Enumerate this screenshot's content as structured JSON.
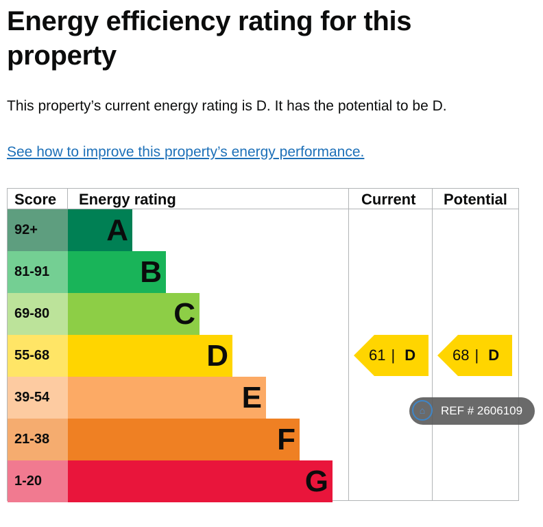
{
  "title": "Energy efficiency rating for this property",
  "summary": "This property’s current energy rating is D. It has the potential to be D.",
  "link": "See how to improve this property’s energy performance.",
  "table": {
    "headers": {
      "score": "Score",
      "rating": "Energy rating",
      "current": "Current",
      "potential": "Potential"
    },
    "bands": [
      {
        "score": "92+",
        "letter": "A",
        "color": "#008054",
        "score_bg": "#5e9e7f"
      },
      {
        "score": "81-91",
        "letter": "B",
        "color": "#19b459",
        "score_bg": "#74cf93"
      },
      {
        "score": "69-80",
        "letter": "C",
        "color": "#8dce46",
        "score_bg": "#bce39a"
      },
      {
        "score": "55-68",
        "letter": "D",
        "color": "#ffd500",
        "score_bg": "#ffe566"
      },
      {
        "score": "39-54",
        "letter": "E",
        "color": "#fcaa65",
        "score_bg": "#fdcba1"
      },
      {
        "score": "21-38",
        "letter": "F",
        "color": "#ef8023",
        "score_bg": "#f5ac6f"
      },
      {
        "score": "1-20",
        "letter": "G",
        "color": "#e9153b",
        "score_bg": "#f17a90"
      }
    ],
    "current": {
      "value": "61",
      "separator": "|",
      "letter": "D"
    },
    "potential": {
      "value": "68",
      "separator": "|",
      "letter": "D"
    }
  },
  "ref_badge": {
    "icon": "home-icon",
    "text": "REF # 2606109"
  }
}
